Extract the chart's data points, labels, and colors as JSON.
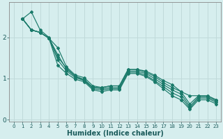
{
  "xlabel": "Humidex (Indice chaleur)",
  "bg_color": "#d6eeee",
  "grid_color": "#c0dada",
  "line_color": "#1a7a6a",
  "xlim": [
    -0.5,
    23.5
  ],
  "ylim": [
    -0.05,
    2.85
  ],
  "yticks": [
    0,
    1,
    2
  ],
  "xticks": [
    0,
    1,
    2,
    3,
    4,
    5,
    6,
    7,
    8,
    9,
    10,
    11,
    12,
    13,
    14,
    15,
    16,
    17,
    18,
    19,
    20,
    21,
    22,
    23
  ],
  "series": [
    [
      2.45,
      2.62,
      2.18,
      2.0,
      1.52,
      1.25,
      1.05,
      0.95,
      0.78,
      0.78,
      0.82,
      0.82,
      1.22,
      1.22,
      1.18,
      1.08,
      0.95,
      0.85,
      0.68,
      0.58,
      0.58,
      0.58,
      0.48
    ],
    [
      2.45,
      2.18,
      2.12,
      1.98,
      1.75,
      1.28,
      1.08,
      1.02,
      0.82,
      0.78,
      0.82,
      0.82,
      1.22,
      1.22,
      1.15,
      1.05,
      0.9,
      0.78,
      0.68,
      0.38,
      0.58,
      0.58,
      0.48
    ],
    [
      2.45,
      2.18,
      2.12,
      1.98,
      1.58,
      1.22,
      1.05,
      0.98,
      0.78,
      0.75,
      0.78,
      0.78,
      1.18,
      1.18,
      1.12,
      1.0,
      0.85,
      0.72,
      0.62,
      0.32,
      0.55,
      0.55,
      0.45
    ],
    [
      2.45,
      2.18,
      2.12,
      1.98,
      1.45,
      1.18,
      1.02,
      0.95,
      0.75,
      0.72,
      0.75,
      0.75,
      1.15,
      1.15,
      1.08,
      0.95,
      0.8,
      0.65,
      0.55,
      0.28,
      0.52,
      0.52,
      0.42
    ],
    [
      2.45,
      2.18,
      2.12,
      1.98,
      1.32,
      1.12,
      0.98,
      0.92,
      0.72,
      0.68,
      0.72,
      0.72,
      1.12,
      1.12,
      1.05,
      0.92,
      0.75,
      0.58,
      0.48,
      0.25,
      0.48,
      0.48,
      0.38
    ]
  ]
}
